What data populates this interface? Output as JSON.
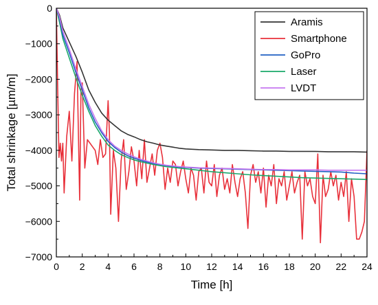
{
  "chart_data": {
    "type": "line",
    "title": "",
    "xlabel": "Time [h]",
    "ylabel": "Total shrinkage [µm/m]",
    "xlim": [
      0,
      24
    ],
    "ylim": [
      -7000,
      0
    ],
    "xticks": [
      0,
      2,
      4,
      6,
      8,
      10,
      12,
      14,
      16,
      18,
      20,
      22,
      24
    ],
    "yticks": [
      0,
      -1000,
      -2000,
      -3000,
      -4000,
      -5000,
      -6000,
      -7000
    ],
    "grid": false,
    "legend_position": "top-right",
    "series": [
      {
        "name": "Aramis",
        "color": "#333333",
        "x": [
          0,
          0.25,
          0.5,
          1,
          1.5,
          2,
          2.5,
          3,
          3.5,
          4,
          4.5,
          5,
          5.5,
          6,
          6.5,
          7,
          7.5,
          8,
          8.5,
          9,
          9.5,
          10,
          11,
          12,
          13,
          14,
          15,
          16,
          17,
          18,
          19,
          20,
          21,
          22,
          23,
          24
        ],
        "y": [
          0,
          -200,
          -550,
          -950,
          -1350,
          -1800,
          -2300,
          -2650,
          -2950,
          -3150,
          -3300,
          -3450,
          -3550,
          -3620,
          -3700,
          -3760,
          -3800,
          -3850,
          -3880,
          -3910,
          -3940,
          -3960,
          -3980,
          -3990,
          -4000,
          -4000,
          -4010,
          -4020,
          -4020,
          -4030,
          -4030,
          -4030,
          -4040,
          -4040,
          -4040,
          -4050
        ]
      },
      {
        "name": "Smartphone",
        "color": "#e8303a",
        "x": [
          0,
          0.1,
          0.2,
          0.3,
          0.4,
          0.5,
          0.6,
          0.8,
          1.0,
          1.2,
          1.4,
          1.6,
          1.8,
          1.9,
          2.0,
          2.2,
          2.4,
          2.6,
          2.8,
          3.0,
          3.2,
          3.4,
          3.6,
          3.8,
          4.0,
          4.1,
          4.2,
          4.4,
          4.6,
          4.8,
          5.0,
          5.2,
          5.4,
          5.6,
          5.8,
          6.0,
          6.2,
          6.4,
          6.6,
          6.8,
          7.0,
          7.2,
          7.4,
          7.6,
          7.8,
          8.0,
          8.2,
          8.4,
          8.6,
          8.8,
          9.0,
          9.2,
          9.4,
          9.6,
          9.8,
          10.0,
          10.2,
          10.4,
          10.6,
          10.8,
          11.0,
          11.2,
          11.4,
          11.6,
          11.8,
          12.0,
          12.2,
          12.4,
          12.6,
          12.8,
          13.0,
          13.2,
          13.4,
          13.6,
          13.8,
          14.0,
          14.2,
          14.4,
          14.6,
          14.8,
          15.0,
          15.2,
          15.4,
          15.6,
          15.8,
          16.0,
          16.2,
          16.4,
          16.6,
          16.8,
          17.0,
          17.2,
          17.4,
          17.6,
          17.8,
          18.0,
          18.2,
          18.4,
          18.6,
          18.8,
          19.0,
          19.2,
          19.4,
          19.6,
          19.8,
          20.0,
          20.2,
          20.4,
          20.6,
          20.8,
          21.0,
          21.2,
          21.4,
          21.6,
          21.8,
          22.0,
          22.2,
          22.4,
          22.6,
          22.8,
          23.0,
          23.2,
          23.4,
          23.6,
          23.8,
          24.0
        ],
        "y": [
          0,
          -2200,
          -4200,
          -3800,
          -4300,
          -3800,
          -5200,
          -3600,
          -2900,
          -4300,
          -2400,
          -1500,
          -5400,
          -2300,
          -2100,
          -4500,
          -3700,
          -3800,
          -3900,
          -4000,
          -4400,
          -3700,
          -4200,
          -4100,
          -2600,
          -3500,
          -5800,
          -4000,
          -4500,
          -6000,
          -4300,
          -3700,
          -5100,
          -4600,
          -3900,
          -4300,
          -5000,
          -4000,
          -4800,
          -3700,
          -4900,
          -4500,
          -4100,
          -4700,
          -4000,
          -3800,
          -4200,
          -5100,
          -4500,
          -4900,
          -4300,
          -4400,
          -5000,
          -4600,
          -4300,
          -4800,
          -5200,
          -4500,
          -4700,
          -5400,
          -4600,
          -4500,
          -5200,
          -4300,
          -4900,
          -5000,
          -4400,
          -5300,
          -4700,
          -4500,
          -5100,
          -4800,
          -5200,
          -4400,
          -4900,
          -5300,
          -4800,
          -4600,
          -5200,
          -6200,
          -4700,
          -4400,
          -4900,
          -4600,
          -5200,
          -4500,
          -5600,
          -4700,
          -5000,
          -4400,
          -5500,
          -4800,
          -5000,
          -4600,
          -5400,
          -5000,
          -4600,
          -5200,
          -4900,
          -4700,
          -6500,
          -4600,
          -5000,
          -4800,
          -5300,
          -5500,
          -4100,
          -6600,
          -4700,
          -5300,
          -5100,
          -4600,
          -5000,
          -4700,
          -5400,
          -4900,
          -5300,
          -4600,
          -6000,
          -4800,
          -5300,
          -6500,
          -6500,
          -6300,
          -6000,
          -4000
        ]
      },
      {
        "name": "GoPro",
        "color": "#1f5fc2",
        "x": [
          0,
          0.25,
          0.5,
          1,
          1.5,
          2,
          2.5,
          3,
          3.5,
          4,
          4.5,
          5,
          5.5,
          6,
          6.5,
          7,
          7.5,
          8,
          8.5,
          9,
          9.5,
          10,
          11,
          12,
          13,
          14,
          15,
          16,
          17,
          18,
          19,
          20,
          21,
          22,
          23,
          24
        ],
        "y": [
          0,
          -300,
          -750,
          -1250,
          -1800,
          -2300,
          -2800,
          -3200,
          -3500,
          -3750,
          -3920,
          -4050,
          -4150,
          -4220,
          -4280,
          -4330,
          -4370,
          -4400,
          -4430,
          -4450,
          -4470,
          -4480,
          -4500,
          -4510,
          -4520,
          -4530,
          -4540,
          -4550,
          -4560,
          -4570,
          -4580,
          -4590,
          -4600,
          -4610,
          -4640,
          -4660
        ]
      },
      {
        "name": "Laser",
        "color": "#1aa86a",
        "x": [
          0,
          0.25,
          0.5,
          1,
          1.5,
          2,
          2.5,
          3,
          3.5,
          4,
          4.5,
          5,
          5.5,
          6,
          6.5,
          7,
          7.5,
          8,
          8.5,
          9,
          9.5,
          10,
          11,
          12,
          13,
          14,
          15,
          16,
          17,
          18,
          19,
          20,
          21,
          22,
          23,
          24
        ],
        "y": [
          0,
          -400,
          -850,
          -1400,
          -1950,
          -2450,
          -2900,
          -3300,
          -3600,
          -3850,
          -4000,
          -4120,
          -4200,
          -4270,
          -4320,
          -4360,
          -4400,
          -4430,
          -4460,
          -4480,
          -4500,
          -4520,
          -4560,
          -4600,
          -4630,
          -4660,
          -4690,
          -4710,
          -4730,
          -4750,
          -4770,
          -4780,
          -4790,
          -4800,
          -4810,
          -4820
        ]
      },
      {
        "name": "LVDT",
        "color": "#c576f0",
        "x": [
          0,
          0.25,
          0.5,
          1,
          1.5,
          2,
          2.5,
          3,
          3.5,
          4,
          4.5,
          5,
          5.5,
          6,
          6.5,
          7,
          7.5,
          8,
          8.5,
          9,
          9.5,
          10,
          11,
          12,
          13,
          14,
          15,
          16,
          17,
          18,
          19,
          20,
          21,
          22,
          23,
          24
        ],
        "y": [
          0,
          -250,
          -650,
          -1150,
          -1700,
          -2200,
          -2700,
          -3100,
          -3450,
          -3700,
          -3880,
          -4000,
          -4100,
          -4180,
          -4250,
          -4300,
          -4350,
          -4390,
          -4420,
          -4440,
          -4460,
          -4470,
          -4490,
          -4500,
          -4510,
          -4520,
          -4530,
          -4540,
          -4540,
          -4550,
          -4550,
          -4550,
          -4560,
          -4560,
          -4560,
          -4560
        ]
      }
    ]
  }
}
